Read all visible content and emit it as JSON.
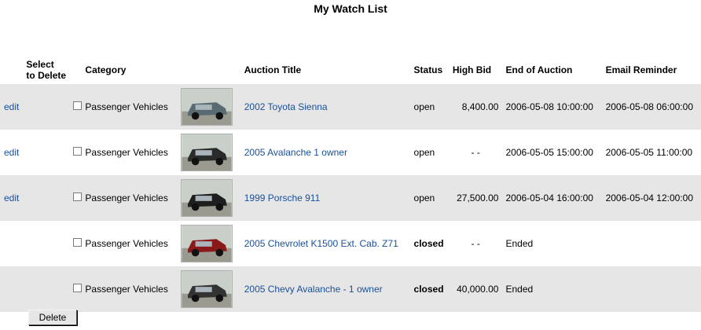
{
  "page": {
    "title": "My Watch List"
  },
  "table": {
    "headers": {
      "select_line1": "Select",
      "select_line2": "to Delete",
      "category": "Category",
      "auction_title": "Auction Title",
      "status": "Status",
      "high_bid": "High Bid",
      "end_of_auction": "End of Auction",
      "email_reminder": "Email Reminder"
    },
    "rows": [
      {
        "edit": "edit",
        "category": "Passenger Vehicles",
        "title": "2002 Toyota Sienna",
        "status": "open",
        "status_bold": false,
        "high_bid": "8,400.00",
        "end": "2006-05-08 10:00:00",
        "reminder": "2006-05-08 06:00:00",
        "thumb_color": "#5a6a72"
      },
      {
        "edit": "edit",
        "category": "Passenger Vehicles",
        "title": "2005 Avalanche 1 owner",
        "status": "open",
        "status_bold": false,
        "high_bid": "- -",
        "end": "2006-05-05 15:00:00",
        "reminder": "2006-05-05 11:00:00",
        "thumb_color": "#2a2a2a"
      },
      {
        "edit": "edit",
        "category": "Passenger Vehicles",
        "title": "1999 Porsche 911",
        "status": "open",
        "status_bold": false,
        "high_bid": "27,500.00",
        "end": "2006-05-04 16:00:00",
        "reminder": "2006-05-04 12:00:00",
        "thumb_color": "#1e1e1e"
      },
      {
        "edit": "",
        "category": "Passenger Vehicles",
        "title": "2005 Chevrolet K1500 Ext. Cab. Z71",
        "status": "closed",
        "status_bold": true,
        "high_bid": "- -",
        "end": "Ended",
        "reminder": "",
        "thumb_color": "#8a1a1a"
      },
      {
        "edit": "",
        "category": "Passenger Vehicles",
        "title": "2005 Chevy Avalanche - 1 owner",
        "status": "closed",
        "status_bold": true,
        "high_bid": "40,000.00",
        "end": "Ended",
        "reminder": "",
        "thumb_color": "#333333"
      }
    ]
  },
  "actions": {
    "delete_label": "Delete"
  },
  "colors": {
    "link": "#1a4f9a",
    "row_alt": "#e6e6e6"
  }
}
